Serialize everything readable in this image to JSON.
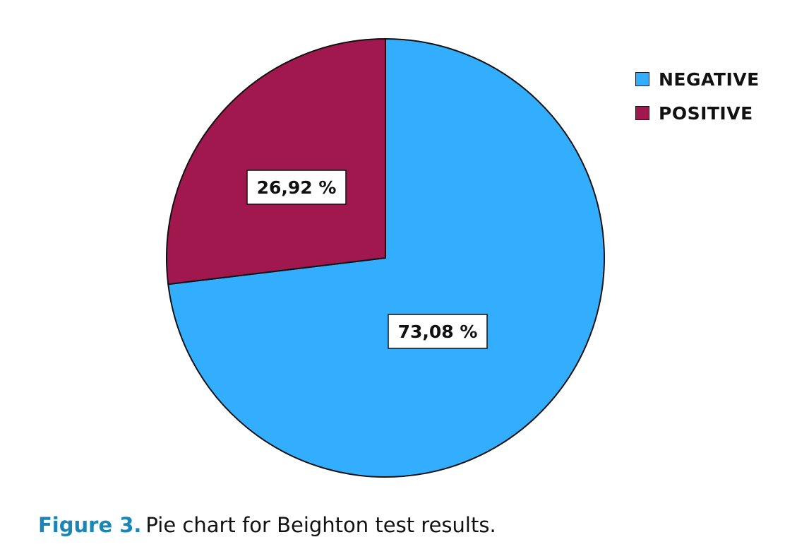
{
  "chart_data": {
    "type": "pie",
    "title": "",
    "slices": [
      {
        "name": "NEGATIVE",
        "value": 73.08,
        "label": "73,08 %",
        "color": "#33aeff"
      },
      {
        "name": "POSITIVE",
        "value": 26.92,
        "label": "26,92 %",
        "color": "#a0184e"
      }
    ],
    "start_angle": "12 o'clock",
    "direction": "clockwise",
    "legend_position": "top-right"
  },
  "caption": {
    "figure_label": "Figure 3.",
    "text": "Pie chart for Beighton test results."
  }
}
